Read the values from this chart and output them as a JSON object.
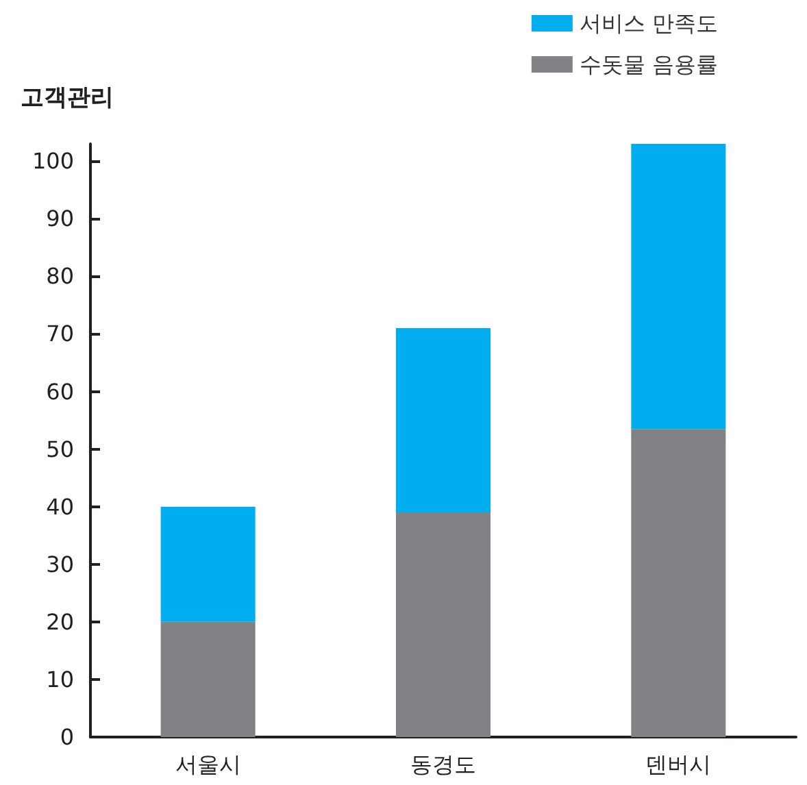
{
  "chart_data": {
    "type": "bar",
    "stacked": true,
    "ylabel": "고객관리",
    "categories": [
      "서울시",
      "동경도",
      "덴버시"
    ],
    "series": [
      {
        "name": "수돗물 음용률",
        "color": "#818285",
        "values": [
          20,
          39,
          53.5
        ]
      },
      {
        "name": "서비스 만족도",
        "color": "#00adee",
        "values": [
          20,
          32,
          49.5
        ]
      }
    ],
    "ylim": [
      0,
      103
    ],
    "yticks": [
      0,
      10,
      20,
      30,
      40,
      50,
      60,
      70,
      80,
      90,
      100
    ],
    "grid": false,
    "legend": "top right"
  }
}
